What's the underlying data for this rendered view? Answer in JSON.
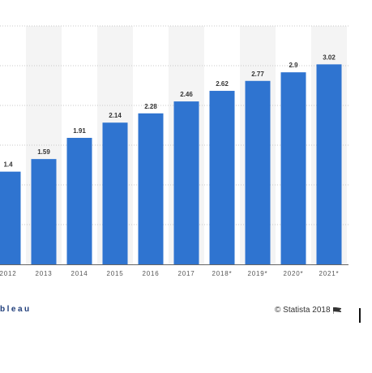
{
  "chart_data": {
    "type": "bar",
    "categories": [
      "2012",
      "2013",
      "2014",
      "2015",
      "2016",
      "2017",
      "2018*",
      "2019*",
      "2020*",
      "2021*"
    ],
    "values": [
      1.4,
      1.59,
      1.91,
      2.14,
      2.28,
      2.46,
      2.62,
      2.77,
      2.9,
      3.02
    ],
    "value_labels": [
      "1.4",
      "1.59",
      "1.91",
      "2.14",
      "2.28",
      "2.46",
      "2.62",
      "2.77",
      "2.9",
      "3.02"
    ],
    "ylim": [
      0,
      3.6
    ],
    "grid": true,
    "bar_color": "#2f74d0",
    "alt_band_color": "#f4f4f4"
  },
  "footer": {
    "left_brand": "bleau",
    "right_credit": "© Statista 2018"
  }
}
